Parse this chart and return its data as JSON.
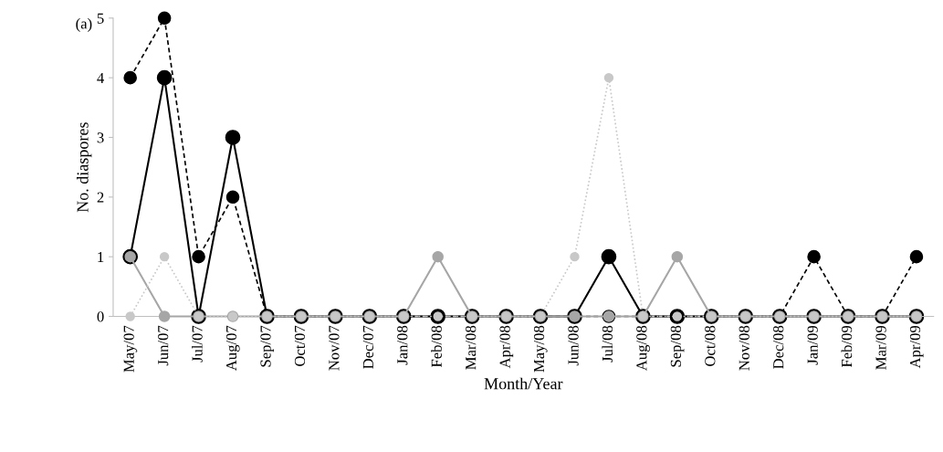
{
  "chart_data": {
    "type": "line",
    "xlabel": "Month/Year",
    "ylabel": "No. diaspores",
    "annotations": [
      "(a)"
    ],
    "categories": [
      "May/07",
      "Jun/07",
      "Jul/07",
      "Aug/07",
      "Sep/07",
      "Oct/07",
      "Nov/07",
      "Dec/07",
      "Jan/08",
      "Feb/08",
      "Mar/08",
      "Apr/08",
      "May/08",
      "Jun/08",
      "Jul/08",
      "Aug/08",
      "Sep/08",
      "Oct/08",
      "Nov/08",
      "Dec/08",
      "Jan/09",
      "Feb/09",
      "Mar/09",
      "Apr/09"
    ],
    "series": [
      {
        "color": "#000000",
        "line_style": "solid",
        "values": [
          1,
          4,
          0,
          3,
          0,
          0,
          0,
          0,
          0,
          0,
          0,
          0,
          0,
          0,
          1,
          0,
          0,
          0,
          0,
          0,
          0,
          0,
          0,
          0
        ]
      },
      {
        "color": "#000000",
        "line_style": "dashed",
        "values": [
          4,
          5,
          1,
          2,
          0,
          0,
          0,
          0,
          0,
          0,
          0,
          0,
          0,
          0,
          0,
          0,
          0,
          0,
          0,
          0,
          1,
          0,
          0,
          1
        ]
      },
      {
        "color": "#a6a6a6",
        "line_style": "solid",
        "values": [
          1,
          0,
          0,
          0,
          0,
          0,
          0,
          0,
          0,
          1,
          0,
          0,
          0,
          0,
          0,
          0,
          1,
          0,
          0,
          0,
          0,
          0,
          0,
          0
        ]
      },
      {
        "color": "#c8c8c8",
        "line_style": "dotted",
        "values": [
          0,
          1,
          0,
          0,
          0,
          0,
          0,
          0,
          0,
          0,
          0,
          0,
          0,
          1,
          4,
          0,
          0,
          0,
          0,
          0,
          0,
          0,
          0,
          0
        ]
      }
    ],
    "ylim": [
      0,
      5
    ],
    "yticks": [
      0,
      1,
      2,
      3,
      4,
      5
    ],
    "marker": "circle",
    "grid": false,
    "legend": false
  }
}
